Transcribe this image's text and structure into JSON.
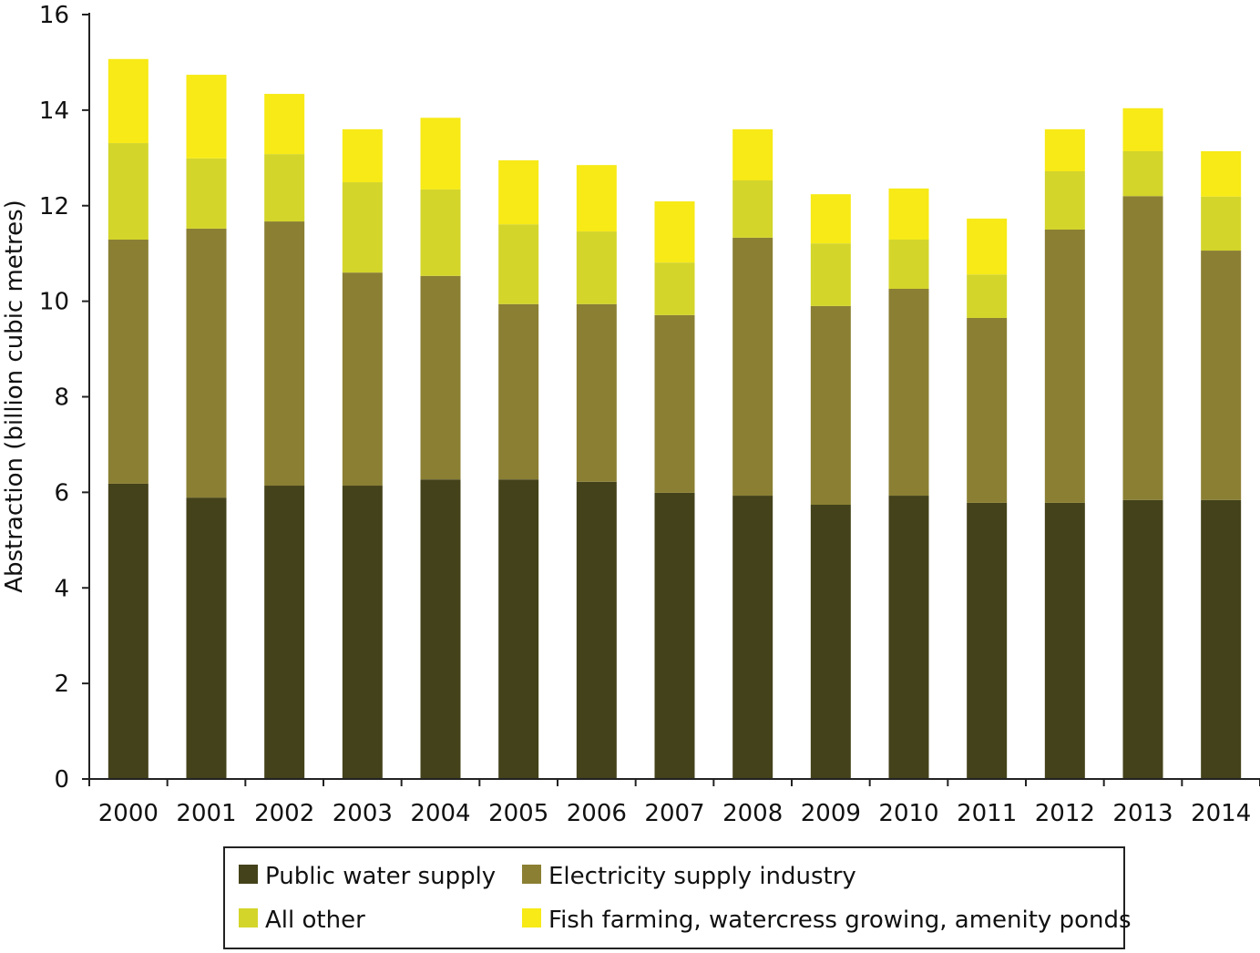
{
  "chart_data": {
    "type": "bar",
    "stacked": true,
    "title": "",
    "xlabel": "",
    "ylabel": "Abstraction (billion cubic metres)",
    "ylim": [
      0,
      16
    ],
    "yticks": [
      0,
      2,
      4,
      6,
      8,
      10,
      12,
      14,
      16
    ],
    "grid": false,
    "legend_position": "bottom",
    "categories": [
      "2000",
      "2001",
      "2002",
      "2003",
      "2004",
      "2005",
      "2006",
      "2007",
      "2008",
      "2009",
      "2010",
      "2011",
      "2012",
      "2013",
      "2014"
    ],
    "series": [
      {
        "name": "Public water supply",
        "color": "#43421a",
        "values": [
          6.18,
          5.89,
          6.14,
          6.14,
          6.27,
          6.27,
          6.22,
          5.99,
          5.93,
          5.74,
          5.93,
          5.78,
          5.78,
          5.84,
          5.84
        ]
      },
      {
        "name": "Electricity supply industry",
        "color": "#8a7f33",
        "values": [
          5.11,
          5.63,
          5.53,
          4.46,
          4.26,
          3.67,
          3.72,
          3.72,
          5.4,
          4.16,
          4.33,
          3.87,
          5.72,
          6.36,
          5.22
        ]
      },
      {
        "name": "All other",
        "color": "#d3d52a",
        "values": [
          2.02,
          1.47,
          1.41,
          1.89,
          1.81,
          1.67,
          1.52,
          1.1,
          1.2,
          1.31,
          1.03,
          0.91,
          1.22,
          0.94,
          1.13
        ]
      },
      {
        "name": "Fish farming, watercress growing, amenity ponds",
        "color": "#f7ea16",
        "values": [
          1.76,
          1.75,
          1.26,
          1.11,
          1.5,
          1.34,
          1.39,
          1.28,
          1.07,
          1.03,
          1.07,
          1.17,
          0.88,
          0.9,
          0.95
        ]
      }
    ]
  }
}
